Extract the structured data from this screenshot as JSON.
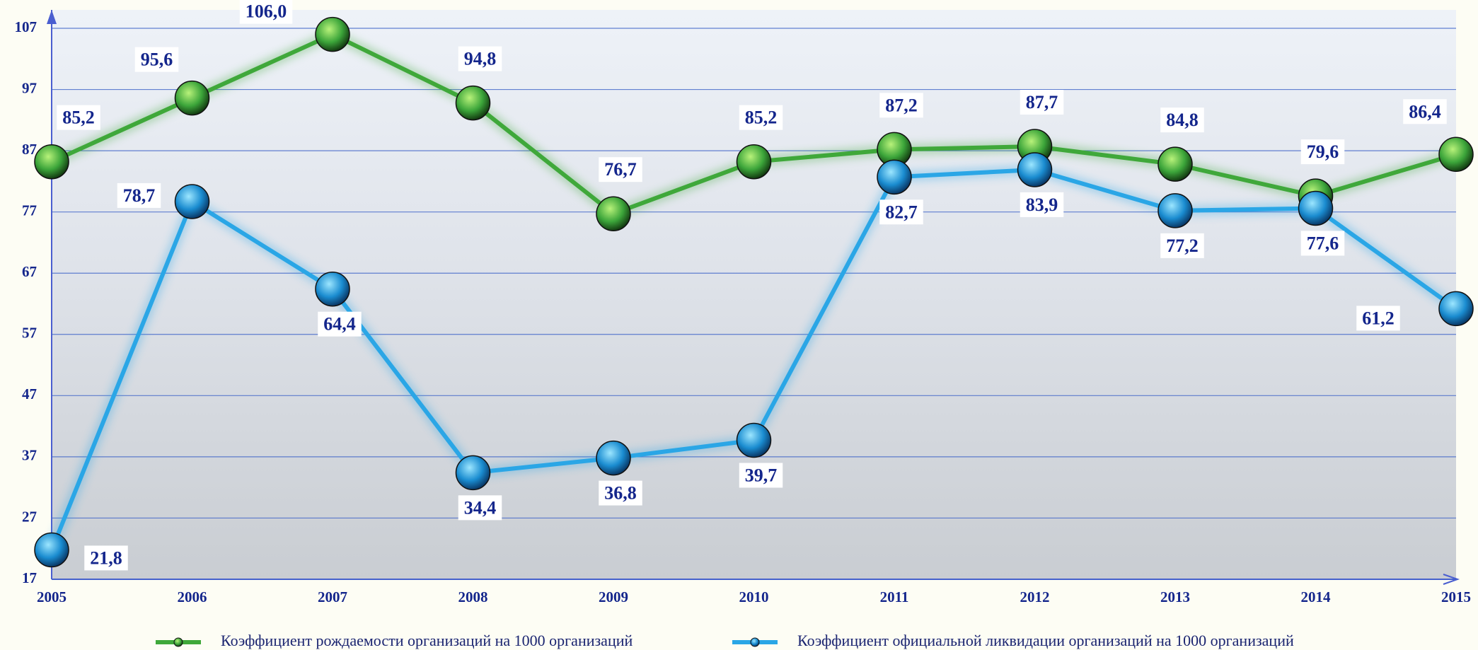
{
  "chart_data": {
    "type": "line",
    "categories": [
      "2005",
      "2006",
      "2007",
      "2008",
      "2009",
      "2010",
      "2011",
      "2012",
      "2013",
      "2014",
      "2015"
    ],
    "ylim": [
      17,
      107
    ],
    "yticks": [
      17,
      27,
      37,
      47,
      57,
      67,
      77,
      87,
      97,
      107
    ],
    "grid": true,
    "series": [
      {
        "name": "Коэффициент  рождаемости  организаций  на  1000  организаций",
        "color": "#3fa83a",
        "values": [
          85.2,
          95.6,
          106.0,
          94.8,
          76.7,
          85.2,
          87.2,
          87.7,
          84.8,
          79.6,
          86.4
        ],
        "value_labels": [
          "85,2",
          "95,6",
          "106,0",
          "94,8",
          "76,7",
          "85,2",
          "87,2",
          "87,7",
          "84,8",
          "79,6",
          "86,4"
        ]
      },
      {
        "name": "Коэффициент официальной ликвидации организаций на 1000 организаций",
        "color": "#2aa6e6",
        "values": [
          21.8,
          78.7,
          64.4,
          34.4,
          36.8,
          39.7,
          82.7,
          83.9,
          77.2,
          77.6,
          61.2
        ],
        "value_labels": [
          "21,8",
          "78,7",
          "64,4",
          "34,4",
          "36,8",
          "39,7",
          "82,7",
          "83,9",
          "77,2",
          "77,6",
          "61,2"
        ]
      }
    ]
  }
}
